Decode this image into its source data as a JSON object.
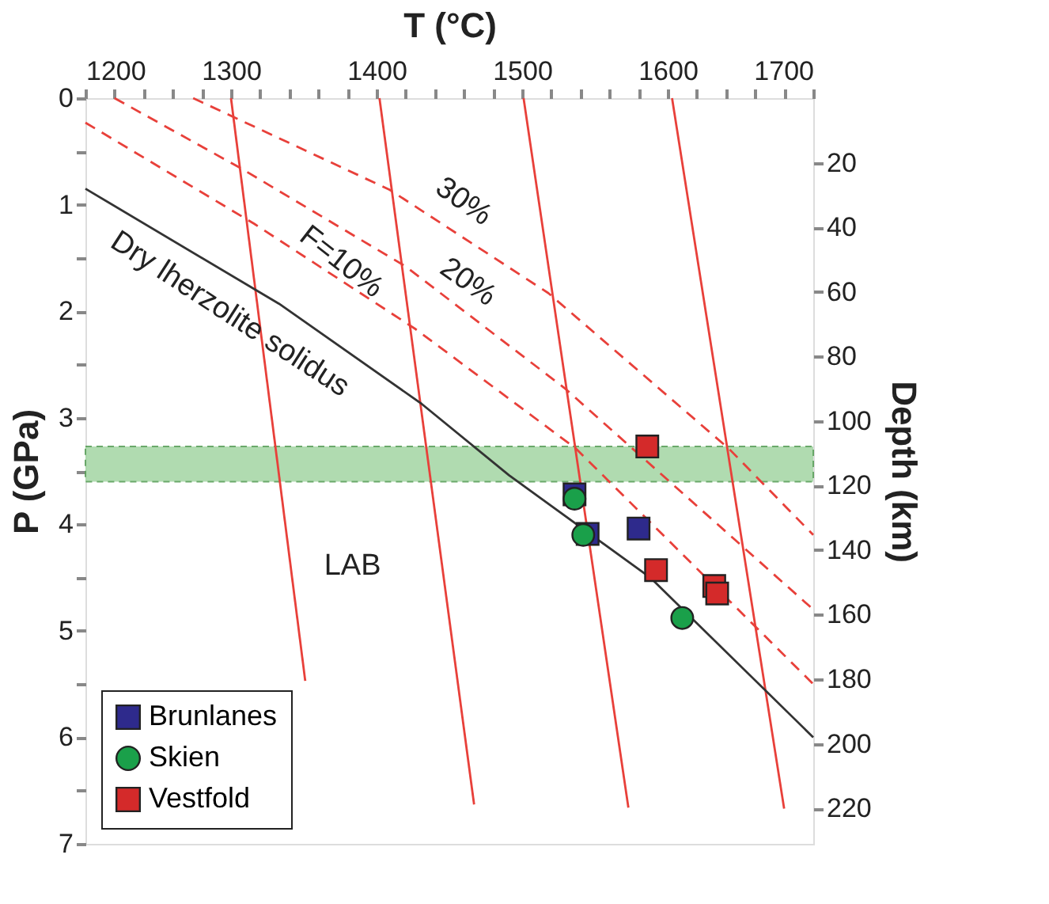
{
  "chart_data": {
    "type": "scatter",
    "xlabel": "T (°C)",
    "ylabel": "P (GPa)",
    "y2label": "Depth (km)",
    "xlim": [
      1200,
      1700
    ],
    "xticks": [
      1200,
      {
        "value": 1220,
        "label": null
      },
      {
        "value": 1240,
        "label": null
      },
      {
        "value": 1260,
        "label": null
      },
      {
        "value": 1280,
        "label": null
      },
      1300,
      {
        "value": 1320,
        "label": null
      },
      {
        "value": 1340,
        "label": null
      },
      {
        "value": 1360,
        "label": null
      },
      {
        "value": 1380,
        "label": null
      },
      1400,
      {
        "value": 1420,
        "label": null
      },
      {
        "value": 1440,
        "label": null
      },
      {
        "value": 1460,
        "label": null
      },
      {
        "value": 1480,
        "label": null
      },
      1500,
      {
        "value": 1520,
        "label": null
      },
      {
        "value": 1540,
        "label": null
      },
      {
        "value": 1560,
        "label": null
      },
      {
        "value": 1580,
        "label": null
      },
      1600,
      {
        "value": 1620,
        "label": null
      },
      {
        "value": 1640,
        "label": null
      },
      {
        "value": 1660,
        "label": null
      },
      {
        "value": 1680,
        "label": null
      },
      1700
    ],
    "ylim": [
      7,
      0
    ],
    "yticks": [
      0,
      {
        "value": 0.5,
        "label": null
      },
      1,
      {
        "value": 1.5,
        "label": null
      },
      2,
      {
        "value": 2.5,
        "label": null
      },
      3,
      {
        "value": 3.5,
        "label": null
      },
      4,
      {
        "value": 4.5,
        "label": null
      },
      5,
      {
        "value": 5.5,
        "label": null
      },
      6,
      {
        "value": 6.5,
        "label": null
      },
      7
    ],
    "y2lim": [
      231,
      0
    ],
    "y2ticks": [
      20,
      40,
      60,
      80,
      100,
      120,
      140,
      160,
      180,
      200,
      220
    ],
    "grid": false,
    "legend": "bottom left",
    "bands": [
      {
        "axis": "y",
        "from": 3.27,
        "to": 3.6,
        "label": null,
        "color": "#a8d8a8"
      }
    ],
    "series": [
      {
        "type": "line",
        "color": "#e8403a",
        "line_style": "solid",
        "x": [
          1300,
          1351
        ],
        "values": [
          0,
          5.47
        ]
      },
      {
        "type": "line",
        "color": "#e8403a",
        "line_style": "solid",
        "x": [
          1402,
          1467
        ],
        "values": [
          0,
          6.63
        ]
      },
      {
        "type": "line",
        "color": "#e8403a",
        "line_style": "solid",
        "x": [
          1501,
          1573
        ],
        "values": [
          0,
          6.66
        ]
      },
      {
        "type": "line",
        "color": "#e8403a",
        "line_style": "solid",
        "x": [
          1603,
          1680
        ],
        "values": [
          0,
          6.67
        ]
      },
      {
        "type": "line",
        "color": "#e8403a",
        "line_style": "dashed",
        "x": [
          1200,
          1316,
          1427,
          1537,
          1700
        ],
        "values": [
          0.23,
          1.18,
          2.17,
          3.29,
          5.5
        ]
      },
      {
        "type": "line",
        "color": "#e8403a",
        "line_style": "dashed",
        "x": [
          1220,
          1307,
          1420,
          1529,
          1700
        ],
        "values": [
          0,
          0.66,
          1.58,
          2.72,
          4.8
        ]
      },
      {
        "type": "line",
        "color": "#e8403a",
        "line_style": "dashed",
        "x": [
          1274,
          1409,
          1518,
          1642,
          1700
        ],
        "values": [
          0,
          0.86,
          1.83,
          3.29,
          4.1
        ]
      },
      {
        "type": "line",
        "color": "#333333",
        "line_style": "solid",
        "x": [
          1200,
          1333,
          1431,
          1491,
          1588,
          1700
        ],
        "values": [
          0.85,
          1.93,
          2.87,
          3.54,
          4.5,
          6.0
        ]
      },
      {
        "name": "Brunlanes",
        "color": "#2e2a8c",
        "marker": "square",
        "x": [
          1536,
          1545,
          1580
        ],
        "values": [
          3.72,
          4.09,
          4.04
        ]
      },
      {
        "name": "Skien",
        "color": "#1aa04a",
        "marker": "circle",
        "x": [
          1536,
          1542,
          1610
        ],
        "values": [
          3.76,
          4.1,
          4.88
        ]
      },
      {
        "name": "Vestfold",
        "color": "#d42a2a",
        "marker": "square",
        "x": [
          1586,
          1592,
          1632,
          1634
        ],
        "values": [
          3.27,
          4.43,
          4.58,
          4.65
        ]
      }
    ],
    "annotations": [
      "Dry lherzolite solidus",
      "F=10%",
      "20%",
      "30%",
      "LAB"
    ]
  }
}
